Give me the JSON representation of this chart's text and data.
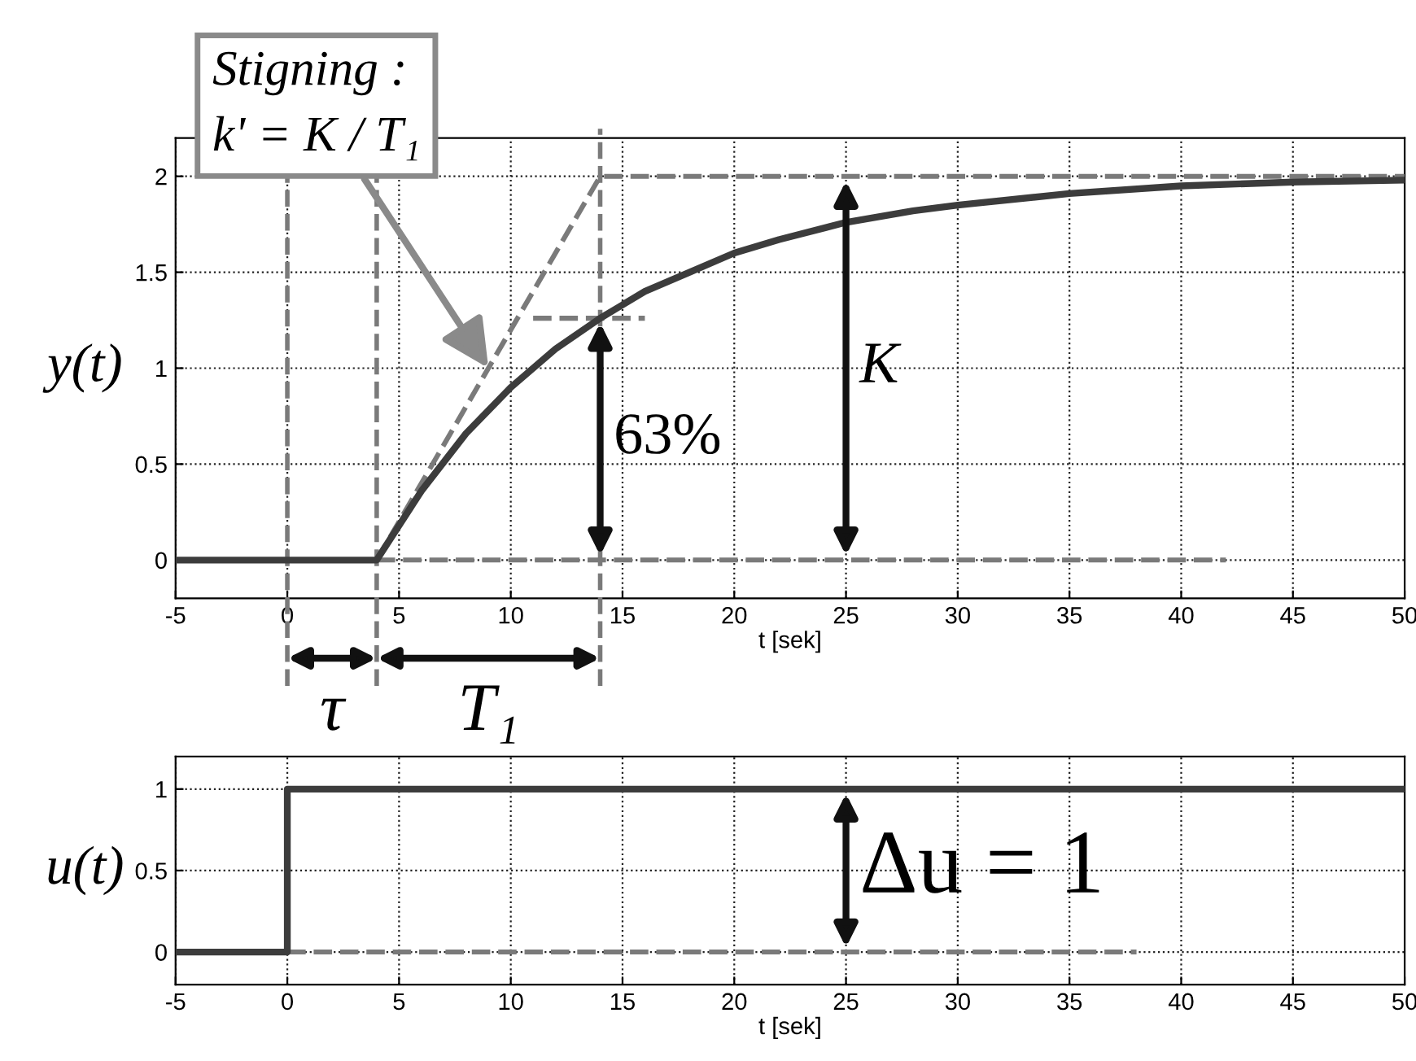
{
  "chart_data": [
    {
      "type": "line",
      "xlabel": "t [sek]",
      "ylabel": "y(t)",
      "xlim": [
        -5,
        50
      ],
      "ylim": [
        -0.2,
        2.2
      ],
      "xticks": [
        -5,
        0,
        5,
        10,
        15,
        20,
        25,
        30,
        35,
        40,
        45,
        50
      ],
      "yticks": [
        0,
        0.5,
        1,
        1.5,
        2
      ],
      "grid": true,
      "legend": false,
      "series": [
        {
          "color": "#3c3c3c",
          "line_style": "solid",
          "x": [
            -5,
            0,
            4,
            6,
            8,
            10,
            12,
            14,
            16,
            18,
            20,
            22,
            25,
            28,
            30,
            35,
            40,
            45,
            50
          ],
          "values": [
            0,
            0,
            0,
            0.36,
            0.66,
            0.9,
            1.1,
            1.26,
            1.4,
            1.5,
            1.6,
            1.67,
            1.76,
            1.82,
            1.85,
            1.91,
            1.95,
            1.97,
            1.98
          ]
        },
        {
          "color": "#7a7a7a",
          "line_style": "dashed",
          "x": [
            4,
            14,
            50
          ],
          "values": [
            0,
            2,
            2
          ]
        },
        {
          "color": "#7a7a7a",
          "line_style": "dashed",
          "x": [
            4,
            42
          ],
          "values": [
            0,
            0
          ]
        },
        {
          "color": "#7a7a7a",
          "line_style": "dashed",
          "x": [
            11,
            16
          ],
          "values": [
            1.26,
            1.26
          ]
        }
      ],
      "ref_lines": [
        {
          "axis": "x",
          "value": 0,
          "color": "#7a7a7a",
          "line_style": "dashed"
        },
        {
          "axis": "x",
          "value": 4,
          "color": "#7a7a7a",
          "line_style": "dashed"
        },
        {
          "axis": "x",
          "value": 14,
          "color": "#7a7a7a",
          "line_style": "dashed"
        }
      ],
      "annotations": [
        {
          "text": "Stigning :\nk' = K / T₁",
          "x": 9,
          "y": 1.0
        },
        {
          "text": "63%",
          "x": 14,
          "y": 1.26
        },
        {
          "text": "K",
          "x": 25,
          "y": 2
        },
        "τ",
        "T₁"
      ]
    },
    {
      "type": "step",
      "xlabel": "t [sek]",
      "ylabel": "u(t)",
      "xlim": [
        -5,
        50
      ],
      "ylim": [
        -0.2,
        1.2
      ],
      "xticks": [
        -5,
        0,
        5,
        10,
        15,
        20,
        25,
        30,
        35,
        40,
        45,
        50
      ],
      "yticks": [
        0,
        0.5,
        1
      ],
      "grid": true,
      "legend": false,
      "series": [
        {
          "color": "#3c3c3c",
          "line_style": "solid",
          "x": [
            -5,
            0,
            50
          ],
          "values": [
            0,
            1,
            1
          ]
        },
        {
          "color": "#7a7a7a",
          "line_style": "dashed",
          "x": [
            0,
            38
          ],
          "values": [
            0,
            0
          ]
        }
      ],
      "annotations": [
        {
          "text": "Δu = 1",
          "x": 25,
          "y": 1
        }
      ]
    }
  ]
}
